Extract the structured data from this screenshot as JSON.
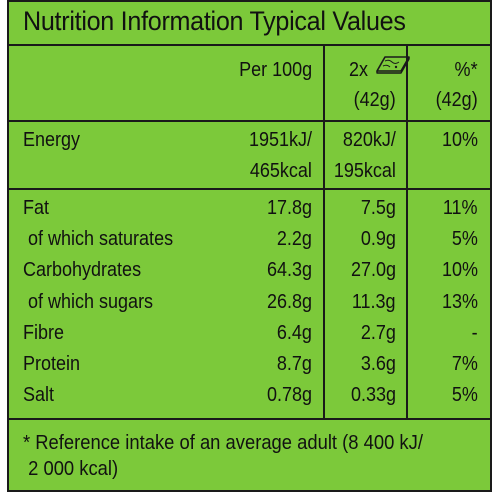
{
  "title": "Nutrition Information Typical Values",
  "headers": {
    "per100": "Per 100g",
    "portion_top": "2x",
    "portion_bottom": "(42g)",
    "ri_top": "%*",
    "ri_bottom": "(42g)"
  },
  "rows": [
    {
      "label": "Energy",
      "per100": "1951kJ/",
      "portion": "820kJ/",
      "ri": "10%"
    },
    {
      "label": "",
      "per100": "465kcal",
      "portion": "195kcal",
      "ri": ""
    },
    {
      "label": "Fat",
      "per100": "17.8g",
      "portion": "7.5g",
      "ri": "11%"
    },
    {
      "label": " of which saturates",
      "per100": "2.2g",
      "portion": "0.9g",
      "ri": "5%"
    },
    {
      "label": "Carbohydrates",
      "per100": "64.3g",
      "portion": "27.0g",
      "ri": "10%"
    },
    {
      "label": " of which sugars",
      "per100": "26.8g",
      "portion": "11.3g",
      "ri": "13%"
    },
    {
      "label": "Fibre",
      "per100": "6.4g",
      "portion": "2.7g",
      "ri": "-"
    },
    {
      "label": "Protein",
      "per100": "8.7g",
      "portion": "3.6g",
      "ri": "7%"
    },
    {
      "label": "Salt",
      "per100": "0.78g",
      "portion": "0.33g",
      "ri": "5%"
    }
  ],
  "footnote_line1": "* Reference intake of an average adult (8 400 kJ/",
  "footnote_line2": " 2 000 kcal)",
  "icons": {
    "portion": "cereal-bar-icon"
  },
  "colors": {
    "background": "#7cc93a",
    "lines": "#1a1a1a"
  }
}
